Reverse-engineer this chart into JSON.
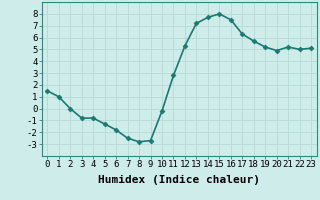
{
  "x": [
    0,
    1,
    2,
    3,
    4,
    5,
    6,
    7,
    8,
    9,
    10,
    11,
    12,
    13,
    14,
    15,
    16,
    17,
    18,
    19,
    20,
    21,
    22,
    23
  ],
  "y": [
    1.5,
    1.0,
    0.0,
    -0.8,
    -0.8,
    -1.3,
    -1.8,
    -2.5,
    -2.8,
    -2.7,
    -0.2,
    2.8,
    5.3,
    7.2,
    7.7,
    8.0,
    7.5,
    6.3,
    5.7,
    5.2,
    4.9,
    5.2,
    5.0,
    5.1
  ],
  "line_color": "#1a7a6e",
  "marker": "D",
  "marker_size": 2.5,
  "bg_color": "#ceecea",
  "grid_color": "#b8d8d5",
  "xlabel": "Humidex (Indice chaleur)",
  "xlabel_fontsize": 8,
  "ylim": [
    -4,
    9
  ],
  "xlim": [
    -0.5,
    23.5
  ],
  "yticks": [
    -3,
    -2,
    -1,
    0,
    1,
    2,
    3,
    4,
    5,
    6,
    7,
    8
  ],
  "xticks": [
    0,
    1,
    2,
    3,
    4,
    5,
    6,
    7,
    8,
    9,
    10,
    11,
    12,
    13,
    14,
    15,
    16,
    17,
    18,
    19,
    20,
    21,
    22,
    23
  ],
  "tick_fontsize": 6.5,
  "linewidth": 1.2
}
